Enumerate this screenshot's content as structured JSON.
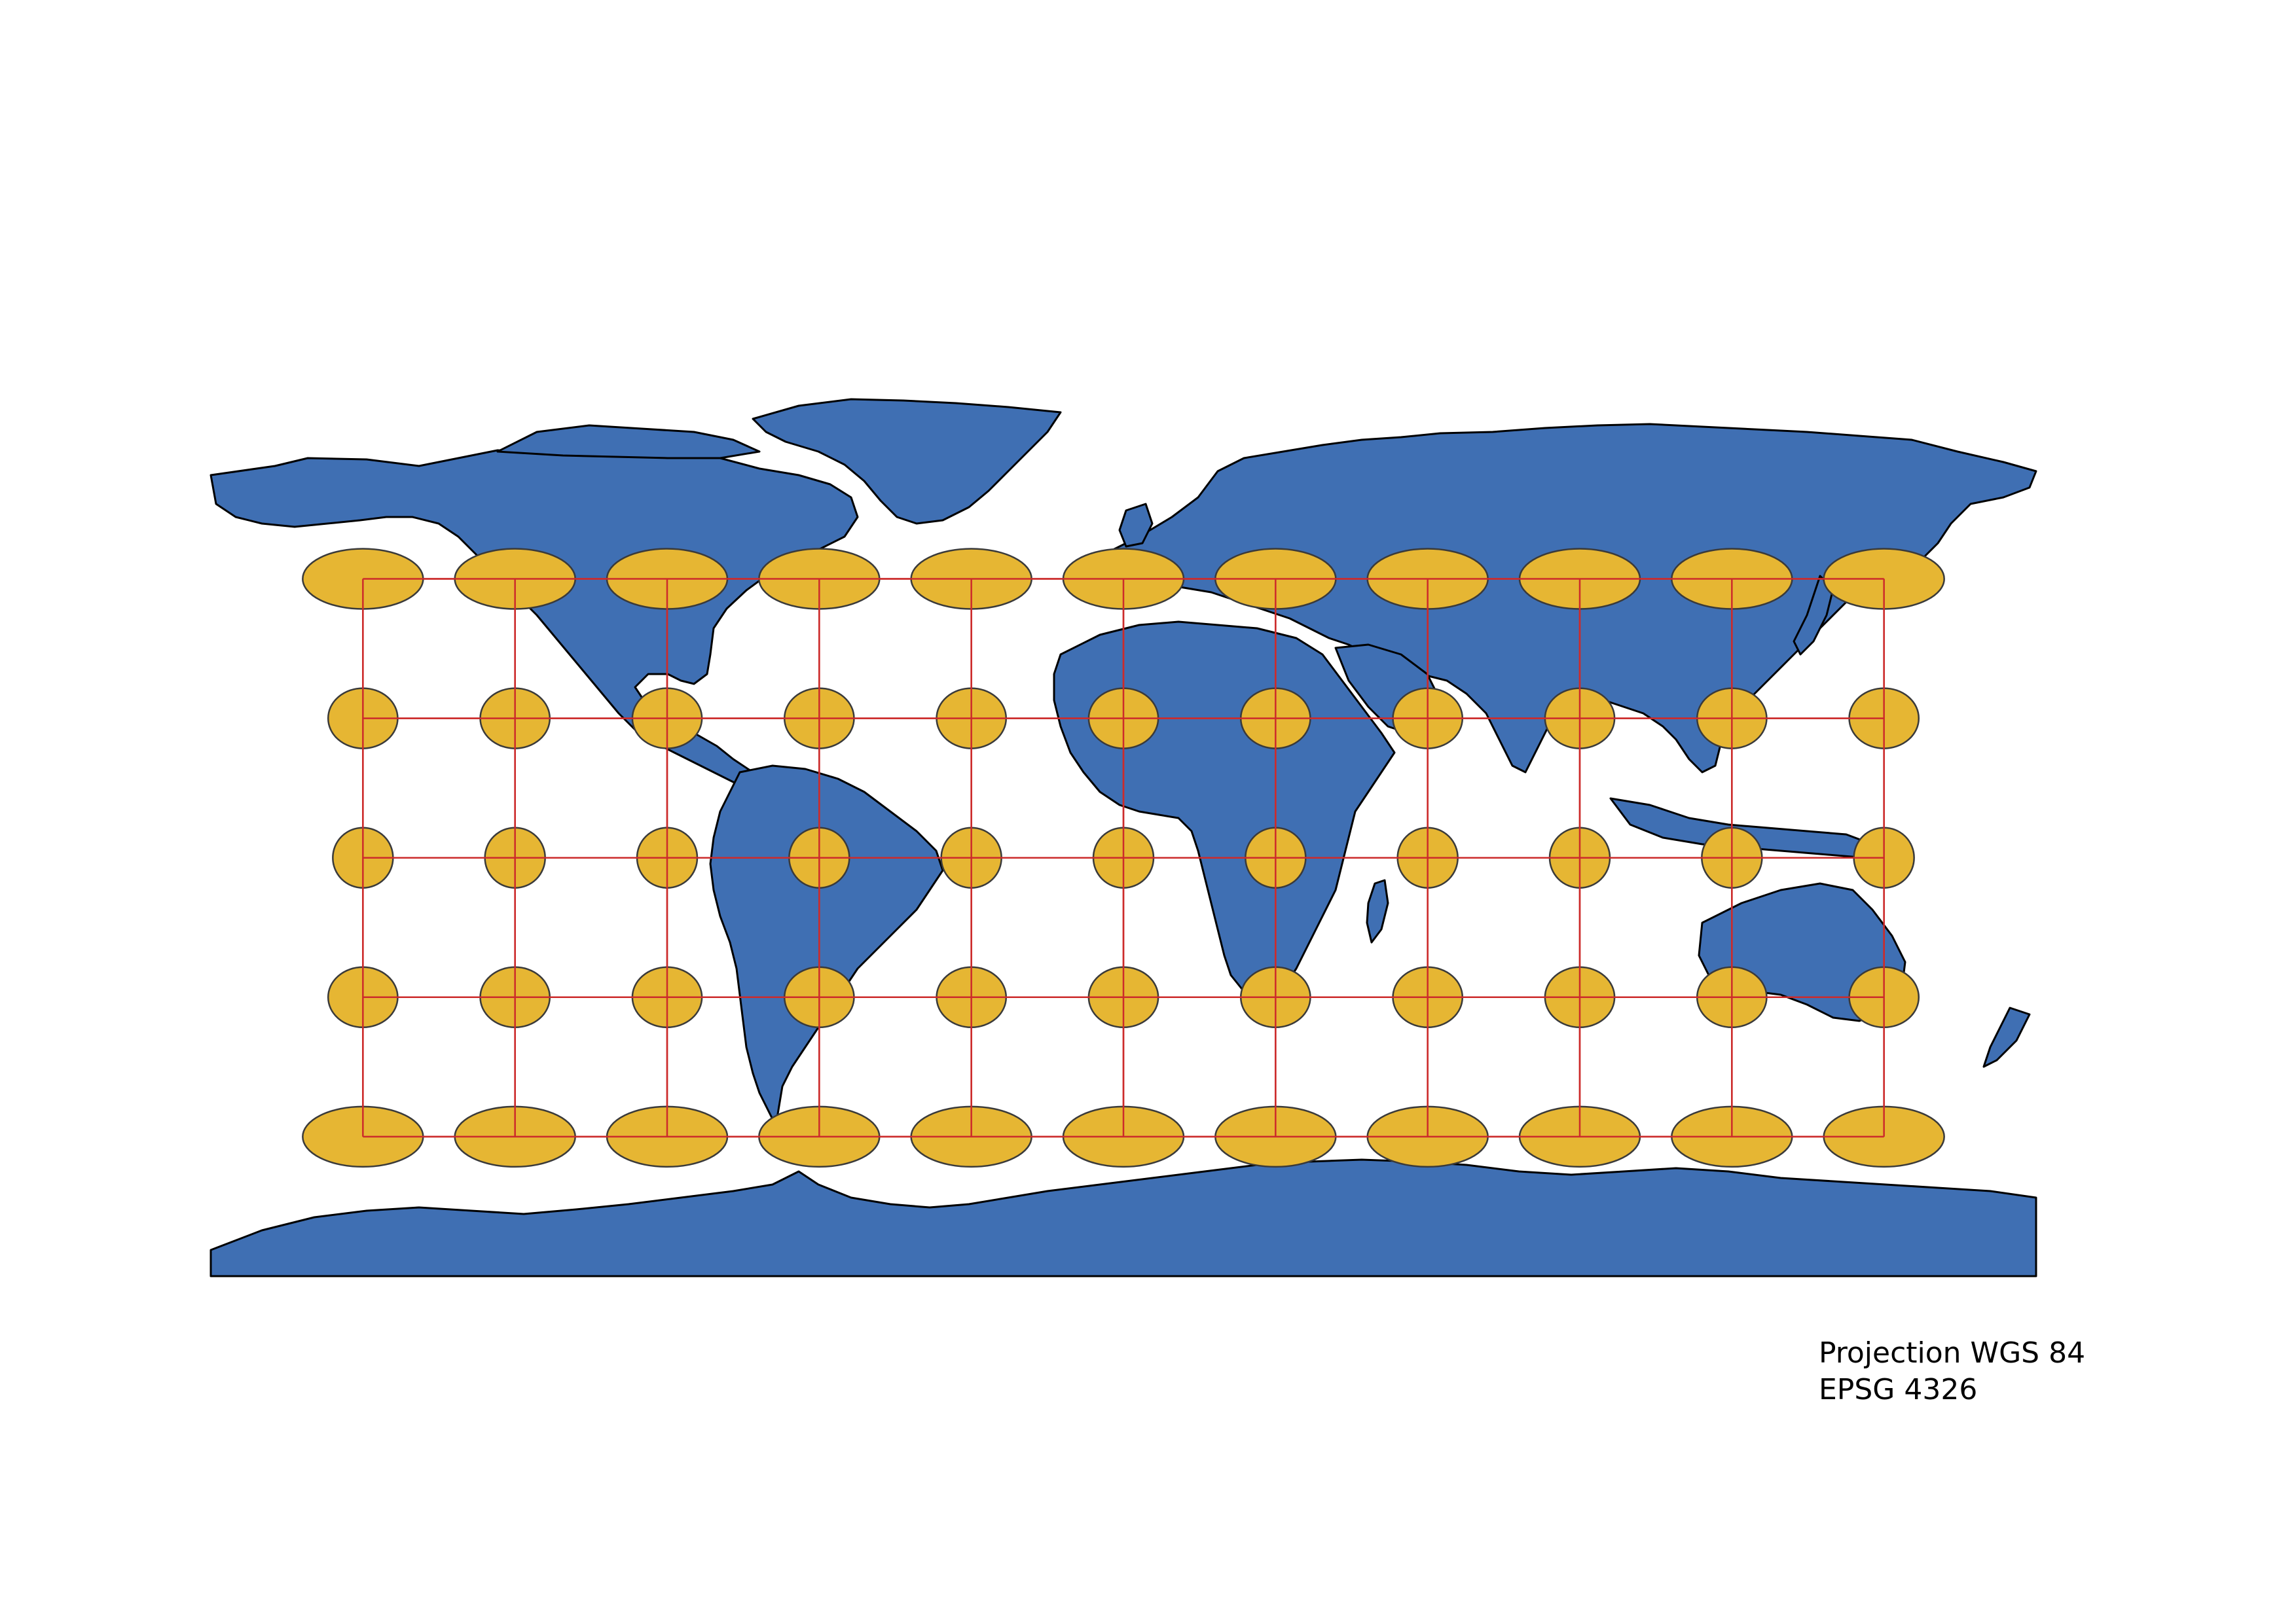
{
  "map": {
    "colors": {
      "land": "#3f6fb3",
      "land_outline": "#000000",
      "graticule": "#cc2b2b",
      "ellipse_fill": "#e6b633",
      "ellipse_outline": "#3a3a3a",
      "background": "#ffffff"
    },
    "graticule": {
      "longitudes": [
        -150,
        -120,
        -90,
        -60,
        -30,
        0,
        30,
        60,
        90,
        120,
        150
      ],
      "latitudes": [
        60,
        30,
        0,
        -30,
        -60
      ]
    },
    "indicatrix": {
      "longitudes": [
        -150,
        -120,
        -90,
        -60,
        -30,
        0,
        30,
        60,
        90,
        120,
        150
      ],
      "latitudes": [
        60,
        30,
        0,
        -30,
        -60
      ]
    }
  },
  "caption": {
    "line1": "Projection WGS 84",
    "line2": "EPSG 4326"
  }
}
